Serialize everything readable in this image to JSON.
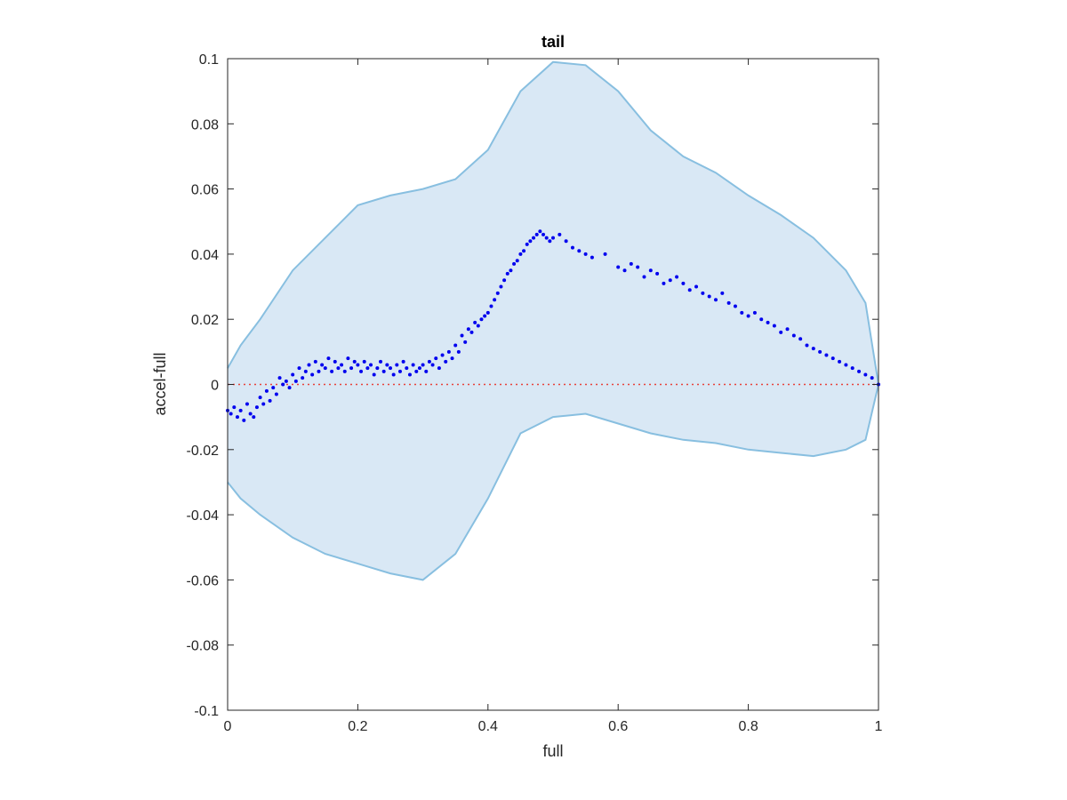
{
  "chart_data": {
    "type": "scatter",
    "title": "tail",
    "xlabel": "full",
    "ylabel": "accel-full",
    "xlim": [
      0,
      1
    ],
    "ylim": [
      -0.1,
      0.1
    ],
    "xticks": [
      "0",
      "0.2",
      "0.4",
      "0.6",
      "0.8",
      "1"
    ],
    "yticks": [
      "-0.1",
      "-0.08",
      "-0.06",
      "-0.04",
      "-0.02",
      "0",
      "0.02",
      "0.04",
      "0.06",
      "0.08",
      "0.1"
    ],
    "grid": false,
    "reference_line": {
      "y": 0,
      "color": "#e8413a",
      "style": "dotted"
    },
    "band": {
      "fill_color": "#d9e8f5",
      "edge_color": "#88bfe0",
      "x": [
        0,
        0.02,
        0.05,
        0.1,
        0.15,
        0.2,
        0.25,
        0.3,
        0.35,
        0.4,
        0.45,
        0.5,
        0.55,
        0.6,
        0.65,
        0.7,
        0.75,
        0.8,
        0.85,
        0.9,
        0.95,
        0.98,
        1.0
      ],
      "upper": [
        0.005,
        0.012,
        0.02,
        0.035,
        0.045,
        0.055,
        0.058,
        0.06,
        0.063,
        0.072,
        0.09,
        0.099,
        0.098,
        0.09,
        0.078,
        0.07,
        0.065,
        0.058,
        0.052,
        0.045,
        0.035,
        0.025,
        0.0
      ],
      "lower": [
        -0.03,
        -0.035,
        -0.04,
        -0.047,
        -0.052,
        -0.055,
        -0.058,
        -0.06,
        -0.052,
        -0.035,
        -0.015,
        -0.01,
        -0.009,
        -0.012,
        -0.015,
        -0.017,
        -0.018,
        -0.02,
        -0.021,
        -0.022,
        -0.02,
        -0.017,
        0.0
      ]
    },
    "series": [
      {
        "color": "#0000ee",
        "x": [
          0.0,
          0.005,
          0.01,
          0.015,
          0.02,
          0.025,
          0.03,
          0.035,
          0.04,
          0.045,
          0.05,
          0.055,
          0.06,
          0.065,
          0.07,
          0.075,
          0.08,
          0.085,
          0.09,
          0.095,
          0.1,
          0.105,
          0.11,
          0.115,
          0.12,
          0.125,
          0.13,
          0.135,
          0.14,
          0.145,
          0.15,
          0.155,
          0.16,
          0.165,
          0.17,
          0.175,
          0.18,
          0.185,
          0.19,
          0.195,
          0.2,
          0.205,
          0.21,
          0.215,
          0.22,
          0.225,
          0.23,
          0.235,
          0.24,
          0.245,
          0.25,
          0.255,
          0.26,
          0.265,
          0.27,
          0.275,
          0.28,
          0.285,
          0.29,
          0.295,
          0.3,
          0.305,
          0.31,
          0.315,
          0.32,
          0.325,
          0.33,
          0.335,
          0.34,
          0.345,
          0.35,
          0.355,
          0.36,
          0.365,
          0.37,
          0.375,
          0.38,
          0.385,
          0.39,
          0.395,
          0.4,
          0.405,
          0.41,
          0.415,
          0.42,
          0.425,
          0.43,
          0.435,
          0.44,
          0.445,
          0.45,
          0.455,
          0.46,
          0.465,
          0.47,
          0.475,
          0.48,
          0.485,
          0.49,
          0.495,
          0.5,
          0.51,
          0.52,
          0.53,
          0.54,
          0.55,
          0.56,
          0.58,
          0.6,
          0.61,
          0.62,
          0.63,
          0.64,
          0.65,
          0.66,
          0.67,
          0.68,
          0.69,
          0.7,
          0.71,
          0.72,
          0.73,
          0.74,
          0.75,
          0.76,
          0.77,
          0.78,
          0.79,
          0.8,
          0.81,
          0.82,
          0.83,
          0.84,
          0.85,
          0.86,
          0.87,
          0.88,
          0.89,
          0.9,
          0.91,
          0.92,
          0.93,
          0.94,
          0.95,
          0.96,
          0.97,
          0.98,
          0.99,
          1.0
        ],
        "y": [
          -0.008,
          -0.009,
          -0.007,
          -0.01,
          -0.008,
          -0.011,
          -0.006,
          -0.009,
          -0.01,
          -0.007,
          -0.004,
          -0.006,
          -0.002,
          -0.005,
          -0.001,
          -0.003,
          0.002,
          0.0,
          0.001,
          -0.001,
          0.003,
          0.001,
          0.005,
          0.002,
          0.004,
          0.006,
          0.003,
          0.007,
          0.004,
          0.006,
          0.005,
          0.008,
          0.004,
          0.007,
          0.005,
          0.006,
          0.004,
          0.008,
          0.005,
          0.007,
          0.006,
          0.004,
          0.007,
          0.005,
          0.006,
          0.003,
          0.005,
          0.007,
          0.004,
          0.006,
          0.005,
          0.003,
          0.006,
          0.004,
          0.007,
          0.005,
          0.003,
          0.006,
          0.004,
          0.005,
          0.006,
          0.004,
          0.007,
          0.006,
          0.008,
          0.005,
          0.009,
          0.007,
          0.01,
          0.008,
          0.012,
          0.01,
          0.015,
          0.013,
          0.017,
          0.016,
          0.019,
          0.018,
          0.02,
          0.021,
          0.022,
          0.024,
          0.026,
          0.028,
          0.03,
          0.032,
          0.034,
          0.035,
          0.037,
          0.038,
          0.04,
          0.041,
          0.043,
          0.044,
          0.045,
          0.046,
          0.047,
          0.046,
          0.045,
          0.044,
          0.045,
          0.046,
          0.044,
          0.042,
          0.041,
          0.04,
          0.039,
          0.04,
          0.036,
          0.035,
          0.037,
          0.036,
          0.033,
          0.035,
          0.034,
          0.031,
          0.032,
          0.033,
          0.031,
          0.029,
          0.03,
          0.028,
          0.027,
          0.026,
          0.028,
          0.025,
          0.024,
          0.022,
          0.021,
          0.022,
          0.02,
          0.019,
          0.018,
          0.016,
          0.017,
          0.015,
          0.014,
          0.012,
          0.011,
          0.01,
          0.009,
          0.008,
          0.007,
          0.006,
          0.005,
          0.004,
          0.003,
          0.002,
          0.0
        ]
      }
    ]
  }
}
